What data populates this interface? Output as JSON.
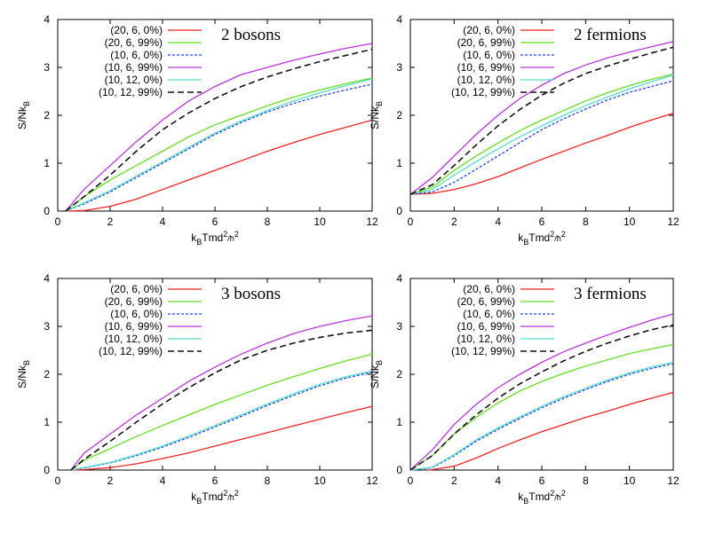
{
  "chart_data": [
    {
      "type": "line",
      "title": "2 bosons",
      "xlabel": {
        "base": "k",
        "sub": "B",
        "mid": "Tmd",
        "sup": "2",
        "tail": "/ħ",
        "sup2": "2"
      },
      "ylabel": {
        "base": "S/Nk",
        "sub": "B"
      },
      "xlim": [
        0,
        12
      ],
      "ylim": [
        0,
        4
      ],
      "xticks": [
        "0",
        "2",
        "4",
        "6",
        "8",
        "10",
        "12"
      ],
      "yticks": [
        "0",
        "1",
        "2",
        "3",
        "4"
      ],
      "legend_position": "top-left",
      "series": [
        {
          "name": "(20, 6, 0%)",
          "color": "#ee2222",
          "dash": "solid",
          "x": [
            0.3,
            1,
            2,
            3,
            4,
            5,
            6,
            7,
            8,
            9,
            10,
            11,
            12
          ],
          "y": [
            0,
            0.01,
            0.1,
            0.25,
            0.45,
            0.65,
            0.85,
            1.05,
            1.25,
            1.43,
            1.6,
            1.75,
            1.9
          ]
        },
        {
          "name": "(20, 6, 99%)",
          "color": "#66dd22",
          "dash": "solid",
          "x": [
            0.3,
            1,
            2,
            3,
            4,
            5,
            6,
            7,
            8,
            9,
            10,
            11,
            12
          ],
          "y": [
            0,
            0.3,
            0.65,
            0.95,
            1.25,
            1.55,
            1.8,
            2.0,
            2.2,
            2.38,
            2.53,
            2.66,
            2.78
          ]
        },
        {
          "name": "(10, 6, 0%)",
          "color": "#2244ee",
          "dash": "dotted",
          "x": [
            0.3,
            1,
            2,
            3,
            4,
            5,
            6,
            7,
            8,
            9,
            10,
            11,
            12
          ],
          "y": [
            0,
            0.15,
            0.4,
            0.7,
            1.0,
            1.3,
            1.6,
            1.85,
            2.07,
            2.25,
            2.4,
            2.53,
            2.65
          ]
        },
        {
          "name": "(10, 6, 99%)",
          "color": "#bb33dd",
          "dash": "solid",
          "x": [
            0.3,
            1,
            2,
            3,
            4,
            5,
            6,
            7,
            8,
            9,
            10,
            11,
            12
          ],
          "y": [
            0,
            0.45,
            0.95,
            1.45,
            1.9,
            2.3,
            2.6,
            2.85,
            3.0,
            3.15,
            3.28,
            3.4,
            3.5
          ]
        },
        {
          "name": "(10, 12, 0%)",
          "color": "#55ddcc",
          "dash": "solid",
          "x": [
            0.3,
            1,
            2,
            3,
            4,
            5,
            6,
            7,
            8,
            9,
            10,
            11,
            12
          ],
          "y": [
            0,
            0.17,
            0.43,
            0.73,
            1.03,
            1.33,
            1.63,
            1.88,
            2.1,
            2.3,
            2.47,
            2.62,
            2.76
          ]
        },
        {
          "name": "(10, 12, 99%)",
          "color": "#111111",
          "dash": "dashed",
          "x": [
            0.3,
            1,
            2,
            3,
            4,
            5,
            6,
            7,
            8,
            9,
            10,
            11,
            12
          ],
          "y": [
            0,
            0.3,
            0.75,
            1.25,
            1.7,
            2.05,
            2.35,
            2.6,
            2.8,
            2.97,
            3.12,
            3.25,
            3.38
          ]
        }
      ]
    },
    {
      "type": "line",
      "title": "2 fermions",
      "xlabel": {
        "base": "k",
        "sub": "B",
        "mid": "Tmd",
        "sup": "2",
        "tail": "/ħ",
        "sup2": "2"
      },
      "ylabel": {
        "base": "S/Nk",
        "sub": "B"
      },
      "xlim": [
        0,
        12
      ],
      "ylim": [
        0,
        4
      ],
      "xticks": [
        "0",
        "2",
        "4",
        "6",
        "8",
        "10",
        "12"
      ],
      "yticks": [
        "0",
        "1",
        "2",
        "3",
        "4"
      ],
      "legend_position": "top-left",
      "series": [
        {
          "name": "(20, 6, 0%)",
          "color": "#ee2222",
          "dash": "solid",
          "x": [
            0,
            1,
            2,
            3,
            4,
            5,
            6,
            7,
            8,
            9,
            10,
            11,
            12
          ],
          "y": [
            0.35,
            0.37,
            0.45,
            0.57,
            0.72,
            0.9,
            1.08,
            1.25,
            1.42,
            1.58,
            1.75,
            1.9,
            2.04
          ]
        },
        {
          "name": "(20, 6, 99%)",
          "color": "#66dd22",
          "dash": "solid",
          "x": [
            0,
            1,
            2,
            3,
            4,
            5,
            6,
            7,
            8,
            9,
            10,
            11,
            12
          ],
          "y": [
            0.35,
            0.5,
            0.85,
            1.15,
            1.42,
            1.68,
            1.9,
            2.1,
            2.3,
            2.47,
            2.62,
            2.75,
            2.86
          ]
        },
        {
          "name": "(10, 6, 0%)",
          "color": "#2244ee",
          "dash": "dotted",
          "x": [
            0,
            1,
            2,
            3,
            4,
            5,
            6,
            7,
            8,
            9,
            10,
            11,
            12
          ],
          "y": [
            0.35,
            0.4,
            0.6,
            0.87,
            1.15,
            1.43,
            1.7,
            1.93,
            2.13,
            2.32,
            2.48,
            2.6,
            2.72
          ]
        },
        {
          "name": "(10, 6, 99%)",
          "color": "#bb33dd",
          "dash": "solid",
          "x": [
            0,
            1,
            2,
            3,
            4,
            5,
            6,
            7,
            8,
            9,
            10,
            11,
            12
          ],
          "y": [
            0.35,
            0.7,
            1.15,
            1.6,
            2.0,
            2.35,
            2.63,
            2.87,
            3.05,
            3.2,
            3.32,
            3.43,
            3.54
          ]
        },
        {
          "name": "(10, 12, 0%)",
          "color": "#55ddcc",
          "dash": "solid",
          "x": [
            0,
            1,
            2,
            3,
            4,
            5,
            6,
            7,
            8,
            9,
            10,
            11,
            12
          ],
          "y": [
            0.35,
            0.45,
            0.75,
            1.03,
            1.3,
            1.55,
            1.78,
            2.0,
            2.2,
            2.38,
            2.55,
            2.7,
            2.84
          ]
        },
        {
          "name": "(10, 12, 99%)",
          "color": "#111111",
          "dash": "dashed",
          "x": [
            0,
            1,
            2,
            3,
            4,
            5,
            6,
            7,
            8,
            9,
            10,
            11,
            12
          ],
          "y": [
            0.35,
            0.55,
            0.95,
            1.38,
            1.78,
            2.12,
            2.42,
            2.67,
            2.87,
            3.03,
            3.17,
            3.3,
            3.42
          ]
        }
      ]
    },
    {
      "type": "line",
      "title": "3 bosons",
      "xlabel": {
        "base": "k",
        "sub": "B",
        "mid": "Tmd",
        "sup": "2",
        "tail": "/ħ",
        "sup2": "2"
      },
      "ylabel": {
        "base": "S/Nk",
        "sub": "B"
      },
      "xlim": [
        0,
        12
      ],
      "ylim": [
        0,
        4
      ],
      "xticks": [
        "0",
        "2",
        "4",
        "6",
        "8",
        "10",
        "12"
      ],
      "yticks": [
        "0",
        "1",
        "2",
        "3",
        "4"
      ],
      "legend_position": "top-left",
      "series": [
        {
          "name": "(20, 6, 0%)",
          "color": "#ee2222",
          "dash": "solid",
          "x": [
            0.5,
            1,
            2,
            3,
            4,
            5,
            6,
            7,
            8,
            9,
            10,
            11,
            12
          ],
          "y": [
            0,
            0.01,
            0.05,
            0.13,
            0.24,
            0.36,
            0.5,
            0.64,
            0.78,
            0.92,
            1.06,
            1.2,
            1.33
          ]
        },
        {
          "name": "(20, 6, 99%)",
          "color": "#66dd22",
          "dash": "solid",
          "x": [
            0.5,
            1,
            2,
            3,
            4,
            5,
            6,
            7,
            8,
            9,
            10,
            11,
            12
          ],
          "y": [
            0,
            0.2,
            0.45,
            0.7,
            0.93,
            1.15,
            1.37,
            1.57,
            1.77,
            1.95,
            2.12,
            2.28,
            2.42
          ]
        },
        {
          "name": "(10, 6, 0%)",
          "color": "#2244ee",
          "dash": "dotted",
          "x": [
            0.5,
            1,
            2,
            3,
            4,
            5,
            6,
            7,
            8,
            9,
            10,
            11,
            12
          ],
          "y": [
            0,
            0.04,
            0.15,
            0.3,
            0.48,
            0.68,
            0.9,
            1.12,
            1.35,
            1.56,
            1.76,
            1.92,
            2.04
          ]
        },
        {
          "name": "(10, 6, 99%)",
          "color": "#bb33dd",
          "dash": "solid",
          "x": [
            0.5,
            1,
            2,
            3,
            4,
            5,
            6,
            7,
            8,
            9,
            10,
            11,
            12
          ],
          "y": [
            0,
            0.35,
            0.75,
            1.15,
            1.5,
            1.85,
            2.15,
            2.42,
            2.65,
            2.85,
            3.0,
            3.12,
            3.22
          ]
        },
        {
          "name": "(10, 12, 0%)",
          "color": "#55ddcc",
          "dash": "solid",
          "x": [
            0.5,
            1,
            2,
            3,
            4,
            5,
            6,
            7,
            8,
            9,
            10,
            11,
            12
          ],
          "y": [
            0,
            0.05,
            0.16,
            0.32,
            0.5,
            0.71,
            0.93,
            1.15,
            1.38,
            1.59,
            1.79,
            1.95,
            2.07
          ]
        },
        {
          "name": "(10, 12, 99%)",
          "color": "#111111",
          "dash": "dashed",
          "x": [
            0.5,
            1,
            2,
            3,
            4,
            5,
            6,
            7,
            8,
            9,
            10,
            11,
            12
          ],
          "y": [
            0,
            0.22,
            0.6,
            1.0,
            1.38,
            1.72,
            2.03,
            2.3,
            2.5,
            2.65,
            2.77,
            2.86,
            2.92
          ]
        }
      ]
    },
    {
      "type": "line",
      "title": "3 fermions",
      "xlabel": {
        "base": "k",
        "sub": "B",
        "mid": "Tmd",
        "sup": "2",
        "tail": "/ħ",
        "sup2": "2"
      },
      "ylabel": {
        "base": "S/Nk",
        "sub": "B"
      },
      "xlim": [
        0,
        12
      ],
      "ylim": [
        0,
        4
      ],
      "xticks": [
        "0",
        "2",
        "4",
        "6",
        "8",
        "10",
        "12"
      ],
      "yticks": [
        "0",
        "1",
        "2",
        "3",
        "4"
      ],
      "legend_position": "top-left",
      "series": [
        {
          "name": "(20, 6, 0%)",
          "color": "#ee2222",
          "dash": "solid",
          "x": [
            0.8,
            1,
            2,
            3,
            4,
            5,
            6,
            7,
            8,
            9,
            10,
            11,
            12
          ],
          "y": [
            0,
            0.01,
            0.08,
            0.25,
            0.45,
            0.63,
            0.8,
            0.95,
            1.1,
            1.23,
            1.37,
            1.5,
            1.62
          ]
        },
        {
          "name": "(20, 6, 99%)",
          "color": "#66dd22",
          "dash": "solid",
          "x": [
            0,
            1,
            2,
            3,
            4,
            5,
            6,
            7,
            8,
            9,
            10,
            11,
            12
          ],
          "y": [
            0,
            0.3,
            0.75,
            1.1,
            1.4,
            1.65,
            1.85,
            2.02,
            2.17,
            2.3,
            2.43,
            2.53,
            2.62
          ]
        },
        {
          "name": "(10, 6, 0%)",
          "color": "#2244ee",
          "dash": "dotted",
          "x": [
            0,
            1,
            2,
            3,
            4,
            5,
            6,
            7,
            8,
            9,
            10,
            11,
            12
          ],
          "y": [
            0,
            0.05,
            0.3,
            0.6,
            0.85,
            1.08,
            1.3,
            1.5,
            1.68,
            1.85,
            2.0,
            2.12,
            2.22
          ]
        },
        {
          "name": "(10, 6, 99%)",
          "color": "#bb33dd",
          "dash": "solid",
          "x": [
            0,
            1,
            2,
            3,
            4,
            5,
            6,
            7,
            8,
            9,
            10,
            11,
            12
          ],
          "y": [
            0,
            0.42,
            0.95,
            1.37,
            1.72,
            2.0,
            2.25,
            2.47,
            2.65,
            2.82,
            2.98,
            3.13,
            3.26
          ]
        },
        {
          "name": "(10, 12, 0%)",
          "color": "#55ddcc",
          "dash": "solid",
          "x": [
            0,
            1,
            2,
            3,
            4,
            5,
            6,
            7,
            8,
            9,
            10,
            11,
            12
          ],
          "y": [
            0,
            0.06,
            0.32,
            0.63,
            0.88,
            1.11,
            1.33,
            1.53,
            1.71,
            1.88,
            2.03,
            2.15,
            2.25
          ]
        },
        {
          "name": "(10, 12, 99%)",
          "color": "#111111",
          "dash": "dashed",
          "x": [
            0,
            1,
            2,
            3,
            4,
            5,
            6,
            7,
            8,
            9,
            10,
            11,
            12
          ],
          "y": [
            0,
            0.3,
            0.75,
            1.15,
            1.5,
            1.8,
            2.05,
            2.28,
            2.48,
            2.65,
            2.8,
            2.93,
            3.03
          ]
        }
      ]
    }
  ]
}
